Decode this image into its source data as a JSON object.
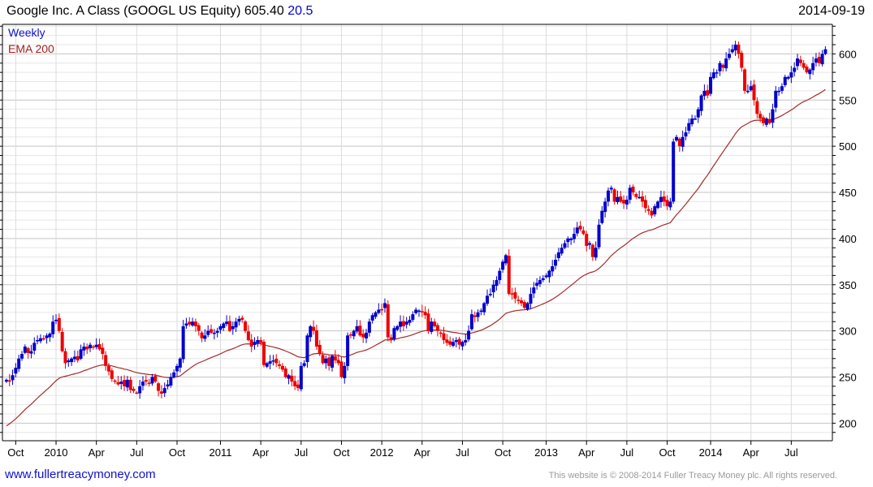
{
  "header": {
    "title": "Google Inc. A Class (GOOGL US Equity) 605.40",
    "change": "20.5",
    "date": "2014-09-19"
  },
  "footer": {
    "site": "www.fullertreacymoney.com",
    "copyright": "This website is © 2008-2014 Fuller Treacy Money plc. All rights reserved."
  },
  "colors": {
    "up": "#0000cc",
    "down": "#ee0000",
    "ema": "#a52a2a",
    "change": "#0000dd"
  },
  "chart_data": {
    "type": "candlestick",
    "title": "Google Inc. A Class (GOOGL US Equity)",
    "legend": [
      "Weekly",
      "EMA 200"
    ],
    "legend_placement": "top-left",
    "ylim": [
      181,
      632
    ],
    "yticks": [
      200,
      250,
      300,
      350,
      400,
      450,
      500,
      550,
      600
    ],
    "grid": true,
    "xticks": [
      {
        "label": "Oct",
        "week": 3
      },
      {
        "label": "2010",
        "week": 16
      },
      {
        "label": "Apr",
        "week": 29
      },
      {
        "label": "Jul",
        "week": 42
      },
      {
        "label": "Oct",
        "week": 55
      },
      {
        "label": "2011",
        "week": 69
      },
      {
        "label": "Apr",
        "week": 82
      },
      {
        "label": "Jul",
        "week": 95
      },
      {
        "label": "Oct",
        "week": 108
      },
      {
        "label": "2012",
        "week": 121
      },
      {
        "label": "Apr",
        "week": 134
      },
      {
        "label": "Jul",
        "week": 147
      },
      {
        "label": "Oct",
        "week": 160
      },
      {
        "label": "2013",
        "week": 174
      },
      {
        "label": "Apr",
        "week": 187
      },
      {
        "label": "Jul",
        "week": 200
      },
      {
        "label": "Oct",
        "week": 213
      },
      {
        "label": "2014",
        "week": 227
      },
      {
        "label": "Apr",
        "week": 240
      },
      {
        "label": "Jul",
        "week": 253
      }
    ],
    "ema_seed": 197,
    "ema_period_weeks": 40,
    "weekly_close": [
      247,
      246,
      252,
      260,
      270,
      275,
      283,
      276,
      278,
      287,
      290,
      292,
      291,
      295,
      297,
      310,
      312,
      300,
      278,
      265,
      268,
      270,
      272,
      268,
      280,
      283,
      280,
      285,
      283,
      285,
      280,
      275,
      262,
      256,
      248,
      245,
      242,
      245,
      240,
      247,
      236,
      235,
      233,
      240,
      245,
      245,
      243,
      250,
      245,
      235,
      232,
      238,
      242,
      250,
      255,
      262,
      270,
      305,
      308,
      307,
      310,
      305,
      300,
      292,
      295,
      300,
      298,
      298,
      300,
      305,
      308,
      310,
      300,
      305,
      310,
      313,
      312,
      300,
      290,
      283,
      288,
      290,
      287,
      263,
      265,
      267,
      268,
      265,
      262,
      258,
      250,
      252,
      245,
      240,
      238,
      262,
      265,
      295,
      305,
      300,
      283,
      275,
      265,
      270,
      262,
      273,
      268,
      265,
      250,
      262,
      295,
      296,
      300,
      305,
      295,
      293,
      298,
      310,
      317,
      320,
      323,
      323,
      330,
      293,
      290,
      303,
      305,
      310,
      305,
      310,
      312,
      318,
      323,
      322,
      320,
      317,
      300,
      310,
      305,
      300,
      298,
      290,
      287,
      285,
      288,
      290,
      285,
      288,
      290,
      300,
      318,
      315,
      320,
      322,
      330,
      338,
      340,
      350,
      355,
      365,
      375,
      382,
      340,
      340,
      335,
      333,
      330,
      325,
      330,
      340,
      347,
      352,
      355,
      357,
      360,
      365,
      370,
      377,
      385,
      390,
      395,
      400,
      400,
      405,
      412,
      410,
      405,
      392,
      395,
      380,
      390,
      415,
      430,
      440,
      452,
      455,
      440,
      445,
      440,
      438,
      442,
      455,
      450,
      445,
      445,
      440,
      433,
      430,
      425,
      435,
      440,
      445,
      440,
      435,
      440,
      505,
      510,
      500,
      510,
      515,
      525,
      530,
      530,
      540,
      555,
      560,
      555,
      575,
      580,
      580,
      590,
      585,
      595,
      600,
      605,
      610,
      600,
      585,
      560,
      560,
      565,
      550,
      535,
      530,
      525,
      530,
      525,
      540,
      560,
      560,
      565,
      575,
      575,
      580,
      585,
      595,
      590,
      585,
      580,
      583,
      590,
      595,
      590,
      600,
      605
    ]
  }
}
